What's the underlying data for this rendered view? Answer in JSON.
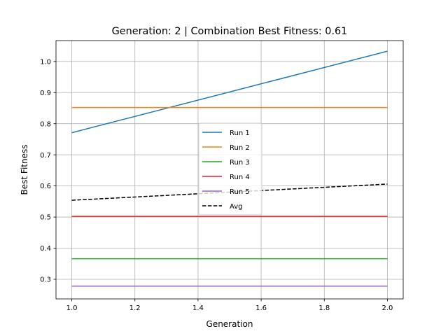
{
  "chart_data": {
    "type": "line",
    "title": "Generation: 2 | Combination Best Fitness: 0.61",
    "xlabel": "Generation",
    "ylabel": "Best Fitness",
    "xlim": [
      0.95,
      2.05
    ],
    "ylim": [
      0.237,
      1.067
    ],
    "xticks": [
      1.0,
      1.2,
      1.4,
      1.6,
      1.8,
      2.0
    ],
    "xtick_labels": [
      "1.0",
      "1.2",
      "1.4",
      "1.6",
      "1.8",
      "2.0"
    ],
    "yticks": [
      0.3,
      0.4,
      0.5,
      0.6,
      0.7,
      0.8,
      0.9,
      1.0
    ],
    "ytick_labels": [
      "0.3",
      "0.4",
      "0.5",
      "0.6",
      "0.7",
      "0.8",
      "0.9",
      "1.0"
    ],
    "grid": true,
    "legend_position": "center",
    "series": [
      {
        "name": "Run 1",
        "x": [
          1,
          2
        ],
        "y": [
          0.771,
          1.033
        ],
        "color": "#1f77b4",
        "dash": "solid"
      },
      {
        "name": "Run 2",
        "x": [
          1,
          2
        ],
        "y": [
          0.852,
          0.852
        ],
        "color": "#ff7f0e",
        "dash": "solid"
      },
      {
        "name": "Run 3",
        "x": [
          1,
          2
        ],
        "y": [
          0.366,
          0.366
        ],
        "color": "#2ca02c",
        "dash": "solid"
      },
      {
        "name": "Run 4",
        "x": [
          1,
          2
        ],
        "y": [
          0.502,
          0.502
        ],
        "color": "#d62728",
        "dash": "solid"
      },
      {
        "name": "Run 5",
        "x": [
          1,
          2
        ],
        "y": [
          0.278,
          0.278
        ],
        "color": "#9467bd",
        "dash": "solid"
      },
      {
        "name": "Avg",
        "x": [
          1,
          2
        ],
        "y": [
          0.554,
          0.606
        ],
        "color": "#000000",
        "dash": "dashed"
      }
    ]
  }
}
